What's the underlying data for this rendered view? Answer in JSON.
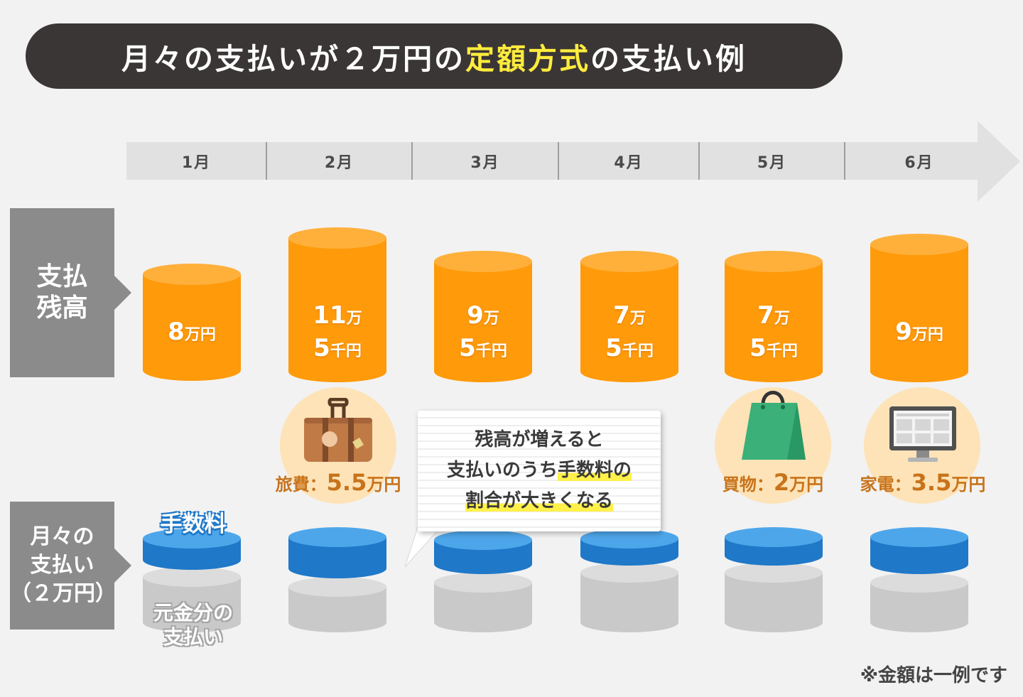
{
  "title": {
    "part1": "月々の支払いが２万円の",
    "highlight": "定額方式",
    "part2": "の支払い例"
  },
  "months": [
    "1月",
    "2月",
    "3月",
    "4月",
    "5月",
    "6月"
  ],
  "side_labels": {
    "balance": "支払残高",
    "balance_line1": "支払",
    "balance_line2": "残高",
    "payment_line1": "月々の",
    "payment_line2": "支払い",
    "payment_line3": "（２万円）"
  },
  "balances": [
    {
      "line1_big": "8",
      "line1_small": "万円",
      "line2_big": "",
      "line2_small": ""
    },
    {
      "line1_big": "11",
      "line1_small": "万",
      "line2_big": "5",
      "line2_small": "千円"
    },
    {
      "line1_big": "9",
      "line1_small": "万",
      "line2_big": "5",
      "line2_small": "千円"
    },
    {
      "line1_big": "7",
      "line1_small": "万",
      "line2_big": "5",
      "line2_small": "千円"
    },
    {
      "line1_big": "7",
      "line1_small": "万",
      "line2_big": "5",
      "line2_small": "千円"
    },
    {
      "line1_big": "9",
      "line1_small": "万円",
      "line2_big": "",
      "line2_small": ""
    }
  ],
  "expenses": [
    {
      "label": "旅費：",
      "amount": "5.5",
      "unit": "万円",
      "icon": "suitcase-icon"
    },
    {
      "label": "買物：",
      "amount": "2",
      "unit": "万円",
      "icon": "shopping-bag-icon"
    },
    {
      "label": "家電：",
      "amount": "3.5",
      "unit": "万円",
      "icon": "monitor-icon"
    }
  ],
  "callout": {
    "line1": "残高が増えると",
    "line2_pre": "支払いのうち",
    "line2_mark": "手数料の",
    "line3_mark": "割合が大きくなる"
  },
  "fee_label": "手数料",
  "principal_label_line1": "元金分の",
  "principal_label_line2": "支払い",
  "note": "※金額は一例です",
  "colors": {
    "orange": "#ff9a0a",
    "orange_top": "#ffb03b",
    "blue": "#1f78c8",
    "blue_top": "#4ea6ea",
    "gray": "#c9c9c9",
    "gray_top": "#dcdcdc",
    "highlight": "#ffec3d"
  }
}
